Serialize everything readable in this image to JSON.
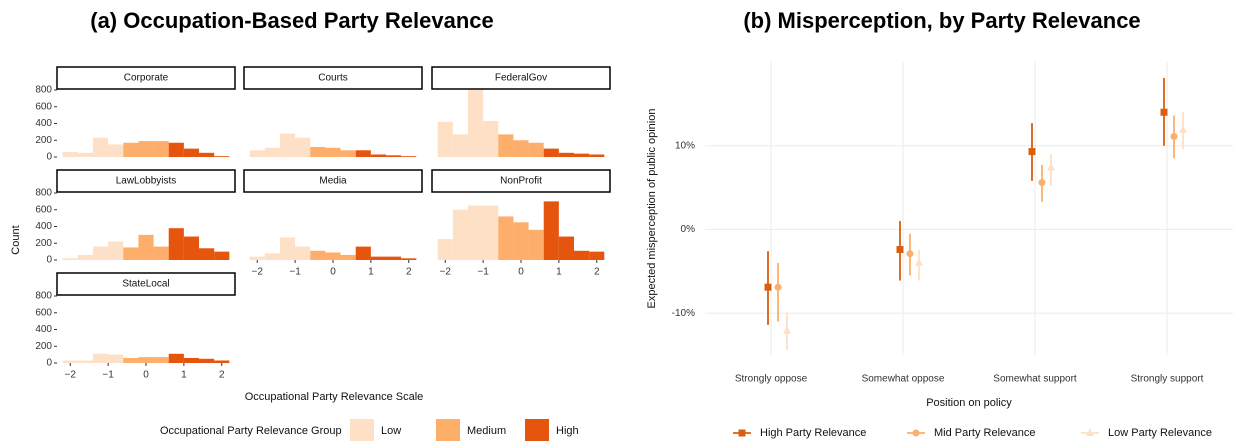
{
  "chart_data": [
    {
      "type": "histogram",
      "title": "(a) Occupation-Based Party Relevance",
      "x_label": "Occupational Party Relevance Scale",
      "y_label": "Count",
      "legend_title": "Occupational Party Relevance Group",
      "bins": [
        -2.2,
        -1.8,
        -1.4,
        -1.0,
        -0.6,
        -0.2,
        0.2,
        0.6,
        1.0,
        1.4,
        1.8,
        2.2
      ],
      "groups": [
        {
          "name": "Low",
          "color": "#fde0c5",
          "from": -2.2,
          "to": -0.6
        },
        {
          "name": "Medium",
          "color": "#fdae6b",
          "from": -0.6,
          "to": 0.6
        },
        {
          "name": "High",
          "color": "#e6550d",
          "from": 0.6,
          "to": 2.2
        }
      ],
      "facets": [
        {
          "name": "Corporate",
          "counts": [
            60,
            50,
            230,
            150,
            170,
            190,
            190,
            170,
            100,
            50,
            10
          ]
        },
        {
          "name": "Courts",
          "counts": [
            80,
            110,
            280,
            230,
            120,
            110,
            80,
            80,
            30,
            20,
            10
          ]
        },
        {
          "name": "FederalGov",
          "counts": [
            420,
            270,
            800,
            430,
            270,
            200,
            170,
            100,
            50,
            40,
            30
          ]
        },
        {
          "name": "LawLobbyists",
          "counts": [
            20,
            60,
            160,
            220,
            150,
            300,
            160,
            380,
            280,
            140,
            100
          ]
        },
        {
          "name": "Media",
          "counts": [
            40,
            80,
            270,
            160,
            110,
            90,
            60,
            160,
            40,
            40,
            20
          ]
        },
        {
          "name": "NonProfit",
          "counts": [
            250,
            600,
            650,
            650,
            520,
            450,
            360,
            700,
            280,
            110,
            100
          ]
        },
        {
          "name": "StateLocal",
          "counts": [
            30,
            30,
            110,
            100,
            60,
            70,
            70,
            110,
            60,
            50,
            30
          ]
        }
      ],
      "xlim": [
        -2.35,
        2.35
      ],
      "xticks": [
        {
          "value": -2,
          "label": "−2"
        },
        {
          "value": -1,
          "label": "−1"
        },
        0,
        1,
        2
      ],
      "ylim": [
        0,
        800
      ],
      "yticks": [
        0,
        200,
        400,
        600,
        800
      ]
    },
    {
      "type": "pointrange",
      "title": "(b) Misperception, by Party Relevance",
      "x_label": "Position on policy",
      "y_label": "Expected misperception of public opinion",
      "categories": [
        "Strongly oppose",
        "Somewhat oppose",
        "Somewhat support",
        "Strongly support"
      ],
      "series": [
        {
          "name": "High Party Relevance",
          "color": "#d95f0e",
          "shape": "square",
          "values": [
            -6.9,
            -2.4,
            9.3,
            14.0
          ],
          "lower": [
            -11.4,
            -6.1,
            5.8,
            10.0
          ],
          "upper": [
            -2.6,
            1.0,
            12.7,
            18.1
          ]
        },
        {
          "name": "Mid Party Relevance",
          "color": "#fdae6b",
          "shape": "circle",
          "values": [
            -6.9,
            -2.9,
            5.6,
            11.1
          ],
          "lower": [
            -11.0,
            -5.5,
            3.3,
            8.5
          ],
          "upper": [
            -4.0,
            -0.5,
            7.7,
            13.6
          ]
        },
        {
          "name": "Low Party Relevance",
          "color": "#fde0c5",
          "shape": "triangle",
          "values": [
            -12.1,
            -4.0,
            7.4,
            11.9
          ],
          "lower": [
            -14.4,
            -6.1,
            5.2,
            9.6
          ],
          "upper": [
            -9.9,
            -2.4,
            9.0,
            14.0
          ]
        }
      ],
      "ylim": [
        -15,
        20
      ],
      "yticks": [
        {
          "value": -10,
          "label": "-10%"
        },
        {
          "value": 0,
          "label": "0%"
        },
        {
          "value": 10,
          "label": "10%"
        }
      ],
      "grid": true
    }
  ]
}
